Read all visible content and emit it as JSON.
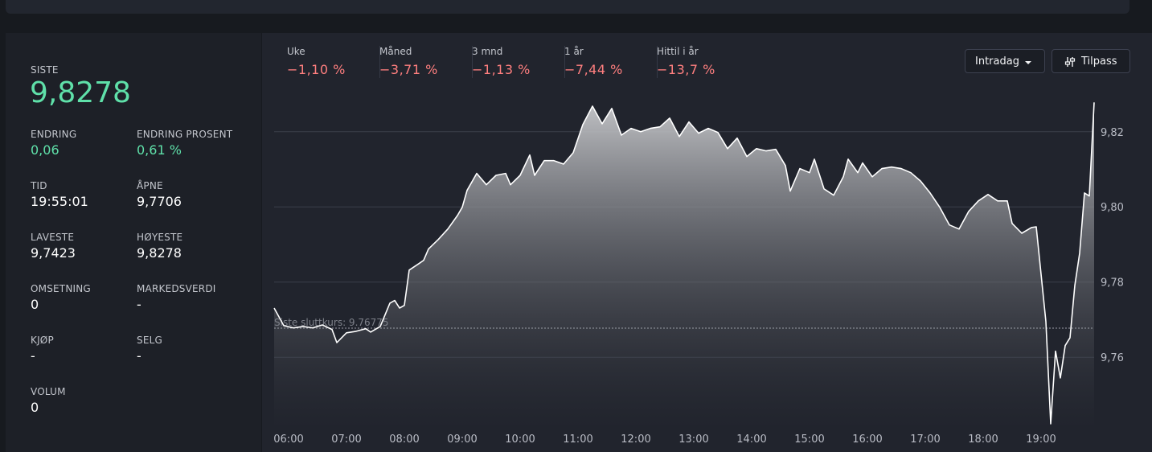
{
  "stats": {
    "last": {
      "label": "SISTE",
      "value": "9,8278"
    },
    "items": [
      {
        "label": "ENDRING",
        "value": "0,06"
      },
      {
        "label": "ENDRING PROSENT",
        "value": "0,61 %"
      },
      {
        "label": "TID",
        "value": "19:55:01"
      },
      {
        "label": "ÅPNE",
        "value": "9,7706"
      },
      {
        "label": "LAVESTE",
        "value": "9,7423"
      },
      {
        "label": "HØYESTE",
        "value": "9,8278"
      },
      {
        "label": "OMSETNING",
        "value": "0"
      },
      {
        "label": "MARKEDSVERDI",
        "value": "-"
      },
      {
        "label": "KJØP",
        "value": "-"
      },
      {
        "label": "SELG",
        "value": "-"
      },
      {
        "label": "VOLUM",
        "value": "0"
      }
    ]
  },
  "returns": [
    {
      "label": "Uke",
      "value": "−1,10 %"
    },
    {
      "label": "Måned",
      "value": "−3,71 %"
    },
    {
      "label": "3 mnd",
      "value": "−1,13 %"
    },
    {
      "label": "1 år",
      "value": "−7,44 %"
    },
    {
      "label": "Hittil i år",
      "value": "−13,7 %"
    }
  ],
  "controls": {
    "range": "Intradag",
    "customize": "Tilpass"
  },
  "chart_data": {
    "type": "area",
    "color": "#ffffff",
    "x": [
      345,
      355,
      365,
      375,
      385,
      395,
      405,
      410,
      420,
      430,
      440,
      445,
      455,
      465,
      470,
      475,
      480,
      485,
      495,
      500,
      505,
      515,
      525,
      535,
      540,
      545,
      555,
      565,
      575,
      585,
      590,
      600,
      610,
      615,
      625,
      635,
      645,
      655,
      665,
      675,
      685,
      695,
      705,
      715,
      725,
      735,
      745,
      755,
      765,
      775,
      785,
      795,
      805,
      815,
      825,
      835,
      845,
      855,
      865,
      875,
      880,
      890,
      900,
      905,
      915,
      925,
      935,
      940,
      950,
      955,
      965,
      975,
      985,
      995,
      1005,
      1015,
      1025,
      1035,
      1045,
      1055,
      1065,
      1075,
      1085,
      1095,
      1105,
      1110,
      1120,
      1130,
      1135,
      1145,
      1150,
      1155,
      1160,
      1165,
      1170,
      1175,
      1180,
      1185,
      1190,
      1195
    ],
    "values": [
      9.7731,
      9.7684,
      9.7678,
      9.7682,
      9.7678,
      9.7686,
      9.7674,
      9.7639,
      9.7665,
      9.7669,
      9.7676,
      9.7667,
      9.7682,
      9.7744,
      9.7751,
      9.7731,
      9.7738,
      9.7832,
      9.7849,
      9.7858,
      9.7888,
      9.7913,
      9.7941,
      9.7977,
      9.7999,
      9.8044,
      9.8089,
      9.8059,
      9.8084,
      9.8089,
      9.8059,
      9.8084,
      9.8138,
      9.8084,
      9.8123,
      9.8123,
      9.8114,
      9.8144,
      9.8219,
      9.8268,
      9.8221,
      9.8262,
      9.8191,
      9.8209,
      9.82,
      9.8209,
      9.8213,
      9.8236,
      9.8187,
      9.8226,
      9.8196,
      9.8209,
      9.8198,
      9.8155,
      9.8183,
      9.8134,
      9.8155,
      9.8149,
      9.8153,
      9.811,
      9.8042,
      9.8102,
      9.8091,
      9.8127,
      9.8048,
      9.8031,
      9.808,
      9.8127,
      9.8091,
      9.8117,
      9.808,
      9.8102,
      9.8106,
      9.8102,
      9.8091,
      9.8069,
      9.8037,
      9.7999,
      9.7952,
      9.7941,
      9.7988,
      9.8016,
      9.8033,
      9.8016,
      9.8016,
      9.7956,
      9.793,
      9.7945,
      9.7947,
      9.7695,
      9.7423,
      9.7616,
      9.7545,
      9.7631,
      9.7652,
      9.7791,
      9.7877,
      9.8037,
      9.8029,
      9.8278
    ],
    "xlim": [
      345,
      1195
    ],
    "ylim": [
      9.741,
      9.833
    ],
    "xticks": [
      {
        "value": 360,
        "label": "06:00"
      },
      {
        "value": 420,
        "label": "07:00"
      },
      {
        "value": 480,
        "label": "08:00"
      },
      {
        "value": 540,
        "label": "09:00"
      },
      {
        "value": 600,
        "label": "10:00"
      },
      {
        "value": 660,
        "label": "11:00"
      },
      {
        "value": 720,
        "label": "12:00"
      },
      {
        "value": 780,
        "label": "13:00"
      },
      {
        "value": 840,
        "label": "14:00"
      },
      {
        "value": 900,
        "label": "15:00"
      },
      {
        "value": 960,
        "label": "16:00"
      },
      {
        "value": 1020,
        "label": "17:00"
      },
      {
        "value": 1080,
        "label": "18:00"
      },
      {
        "value": 1140,
        "label": "19:00"
      }
    ],
    "yticks": [
      {
        "value": 9.76,
        "label": "9,76"
      },
      {
        "value": 9.78,
        "label": "9,78"
      },
      {
        "value": 9.8,
        "label": "9,80"
      },
      {
        "value": 9.82,
        "label": "9,82"
      }
    ],
    "grid": true,
    "reference_line": {
      "value": 9.76775,
      "label": "Siste sluttkurs: 9.76775"
    }
  }
}
